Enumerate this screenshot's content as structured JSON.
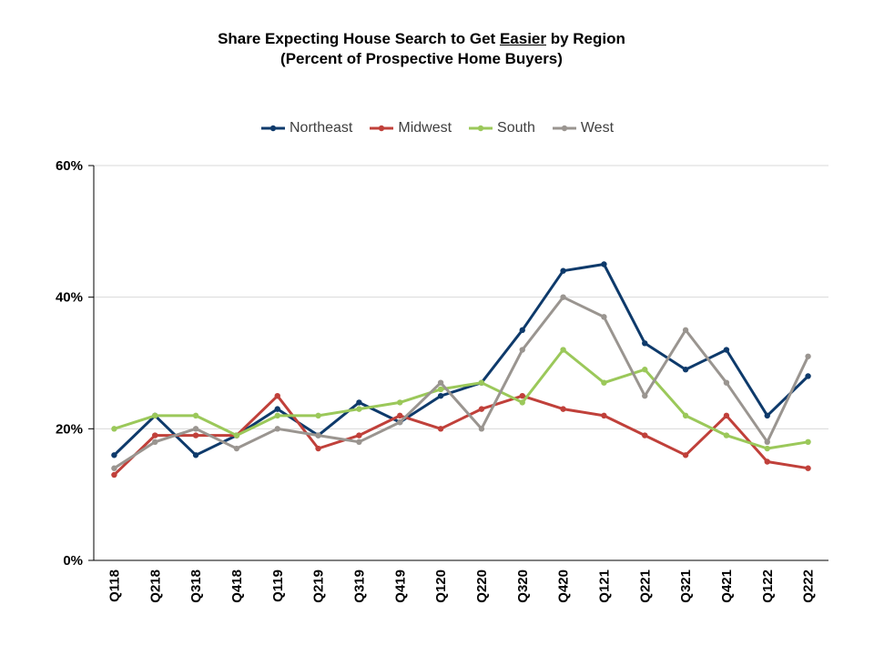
{
  "title": {
    "line1_prefix": "Share Expecting House Search to Get ",
    "line1_underlined": "Easier",
    "line1_suffix": " by Region",
    "line2": "(Percent of Prospective Home Buyers)"
  },
  "chart_data": {
    "type": "line",
    "categories": [
      "Q118",
      "Q218",
      "Q318",
      "Q418",
      "Q119",
      "Q219",
      "Q319",
      "Q419",
      "Q120",
      "Q220",
      "Q320",
      "Q420",
      "Q121",
      "Q221",
      "Q321",
      "Q421",
      "Q122",
      "Q222"
    ],
    "yticks": [
      "0%",
      "20%",
      "40%",
      "60%"
    ],
    "ylim": [
      0,
      60
    ],
    "grid": true,
    "legend_position": "top",
    "series": [
      {
        "name": "Northeast",
        "color": "#0e3a6b",
        "values": [
          16,
          22,
          16,
          19,
          23,
          19,
          24,
          21,
          25,
          27,
          35,
          44,
          45,
          33,
          29,
          32,
          22,
          28
        ]
      },
      {
        "name": "Midwest",
        "color": "#c0403a",
        "values": [
          13,
          19,
          19,
          19,
          25,
          17,
          19,
          22,
          20,
          23,
          25,
          23,
          22,
          19,
          16,
          22,
          15,
          14
        ]
      },
      {
        "name": "South",
        "color": "#9bc85a",
        "values": [
          20,
          22,
          22,
          19,
          22,
          22,
          23,
          24,
          26,
          27,
          24,
          32,
          27,
          29,
          22,
          19,
          17,
          18
        ]
      },
      {
        "name": "West",
        "color": "#9a9590",
        "values": [
          14,
          18,
          20,
          17,
          20,
          19,
          18,
          21,
          27,
          20,
          32,
          40,
          37,
          25,
          35,
          27,
          18,
          31
        ]
      }
    ]
  }
}
